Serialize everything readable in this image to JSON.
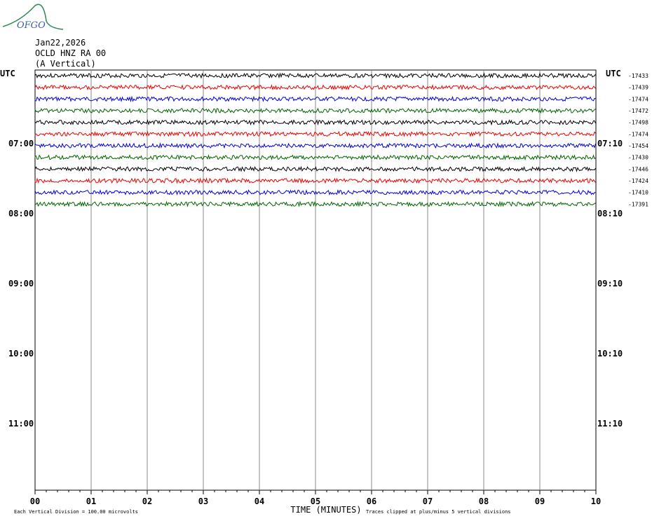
{
  "logo": "OFGO",
  "header": {
    "date": "Jan22,2026",
    "station": "OCLD HNZ RA 00",
    "component": "(A Vertical)"
  },
  "left_labels": [
    "UTC",
    "07:00",
    "08:00",
    "09:00",
    "10:00",
    "11:00"
  ],
  "right_labels": [
    "UTC",
    "07:10",
    "08:10",
    "09:10",
    "10:10",
    "11:10"
  ],
  "x_ticks": [
    "00",
    "01",
    "02",
    "03",
    "04",
    "05",
    "06",
    "07",
    "08",
    "09",
    "10"
  ],
  "x_label": "TIME (MINUTES)",
  "footer_left": "Each Vertical Division =  100.00 microvolts",
  "footer_right": "Traces clipped at plus/minus 5 vertical divisions",
  "traces": [
    {
      "color": "#000000",
      "offset": "-17433"
    },
    {
      "color": "#ee0000",
      "offset": "-17439"
    },
    {
      "color": "#0000dd",
      "offset": "-17474"
    },
    {
      "color": "#006400",
      "offset": "-17472"
    },
    {
      "color": "#000000",
      "offset": "-17498"
    },
    {
      "color": "#ee0000",
      "offset": "-17474"
    },
    {
      "color": "#0000dd",
      "offset": "-17454"
    },
    {
      "color": "#006400",
      "offset": "-17430"
    },
    {
      "color": "#000000",
      "offset": "-17446"
    },
    {
      "color": "#ee0000",
      "offset": "-17424"
    },
    {
      "color": "#0000dd",
      "offset": "-17410"
    },
    {
      "color": "#006400",
      "offset": "-17391"
    }
  ]
}
